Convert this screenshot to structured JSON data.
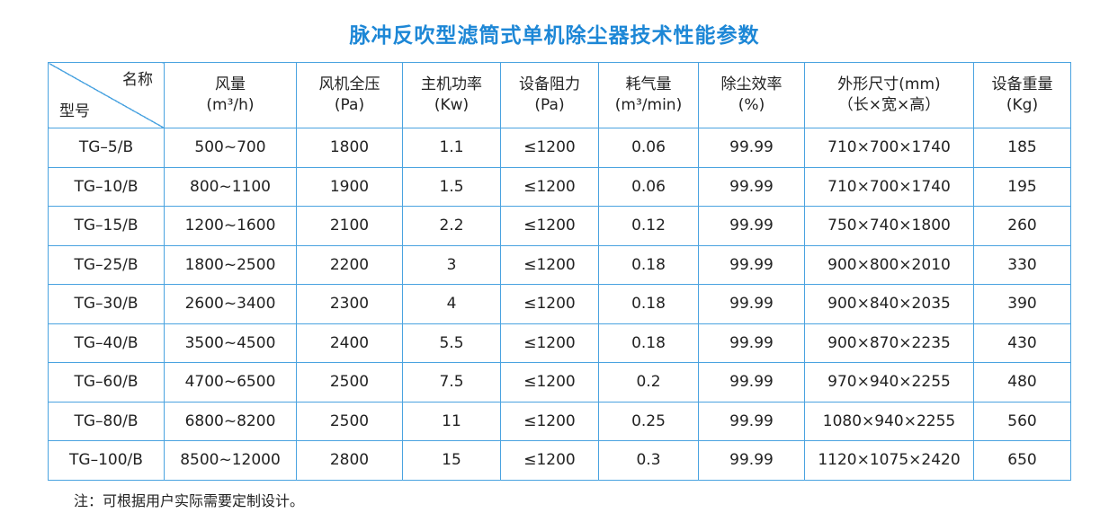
{
  "title": "脉冲反吹型滤筒式单机除尘器技术性能参数",
  "table": {
    "corner_top": "名称",
    "corner_bottom": "型号",
    "headers": [
      {
        "label": "风量",
        "unit": "(m³/h)"
      },
      {
        "label": "风机全压",
        "unit": "(Pa)"
      },
      {
        "label": "主机功率",
        "unit": "(Kw)"
      },
      {
        "label": "设备阻力",
        "unit": "(Pa)"
      },
      {
        "label": "耗气量",
        "unit": "(m³/min)"
      },
      {
        "label": "除尘效率",
        "unit": "(%)"
      },
      {
        "label": "外形尺寸(mm)",
        "unit": "（长×宽×高）"
      },
      {
        "label": "设备重量",
        "unit": "(Kg)"
      }
    ],
    "rows": [
      [
        "TG–5/B",
        "500~700",
        "1800",
        "1.1",
        "≤1200",
        "0.06",
        "99.99",
        "710×700×1740",
        "185"
      ],
      [
        "TG–10/B",
        "800~1100",
        "1900",
        "1.5",
        "≤1200",
        "0.06",
        "99.99",
        "710×700×1740",
        "195"
      ],
      [
        "TG–15/B",
        "1200~1600",
        "2100",
        "2.2",
        "≤1200",
        "0.12",
        "99.99",
        "750×740×1800",
        "260"
      ],
      [
        "TG–25/B",
        "1800~2500",
        "2200",
        "3",
        "≤1200",
        "0.18",
        "99.99",
        "900×800×2010",
        "330"
      ],
      [
        "TG–30/B",
        "2600~3400",
        "2300",
        "4",
        "≤1200",
        "0.18",
        "99.99",
        "900×840×2035",
        "390"
      ],
      [
        "TG–40/B",
        "3500~4500",
        "2400",
        "5.5",
        "≤1200",
        "0.18",
        "99.99",
        "900×870×2235",
        "430"
      ],
      [
        "TG–60/B",
        "4700~6500",
        "2500",
        "7.5",
        "≤1200",
        "0.2",
        "99.99",
        "970×940×2255",
        "480"
      ],
      [
        "TG–80/B",
        "6800~8200",
        "2500",
        "11",
        "≤1200",
        "0.25",
        "99.99",
        "1080×940×2255",
        "560"
      ],
      [
        "TG–100/B",
        "8500~12000",
        "2800",
        "15",
        "≤1200",
        "0.3",
        "99.99",
        "1120×1075×2420",
        "650"
      ]
    ]
  },
  "note": "注：可根据用户实际需要定制设计。",
  "colors": {
    "title": "#1d87d6",
    "border": "#4aa3e0",
    "text": "#222222"
  }
}
